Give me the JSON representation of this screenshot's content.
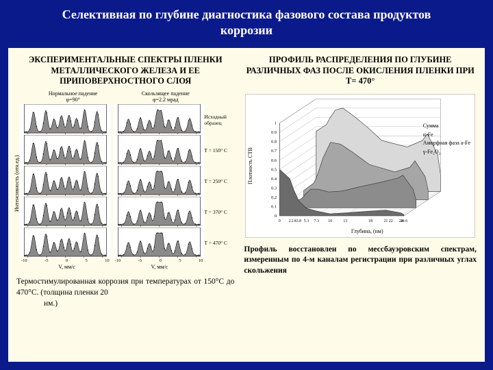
{
  "slide": {
    "title": "Селективная по глубине диагностика фазового состава продуктов коррозии"
  },
  "left": {
    "heading": "ЭКСПЕРИМЕНТАЛЬНЫЕ СПЕКТРЫ ПЛЕНКИ МЕТАЛЛИЧЕСКОГО ЖЕЛЕЗА И ЕЕ ПРИПОВЕРХНОСТНОГО СЛОЯ",
    "col_a_head": "Нормальное падение\nφ=90°",
    "col_b_head": "Скользящее падение\nφ=2.2 мрад",
    "y_label": "Интенсивность (отн.ед.)",
    "x_label": "V, мм/с",
    "row_labels": [
      "Исходный образец",
      "T = 150° C",
      "T = 250° C",
      "T = 370° C",
      "T = 470° C"
    ],
    "x_ticks": [
      -10,
      -5,
      0,
      5,
      10
    ],
    "caption_part1": "Термостимулированная коррозия при температурах от 150°С до 470°С. (толщина пленки 20",
    "caption_part2": "нм.)",
    "spectrum": {
      "fill": "#8a8a8a",
      "stroke": "#111",
      "peaks_a": [
        [
          -8.5,
          0.85
        ],
        [
          -5.2,
          0.92
        ],
        [
          -3.0,
          0.55
        ],
        [
          -1.0,
          0.7
        ],
        [
          1.0,
          0.72
        ],
        [
          3.0,
          0.58
        ],
        [
          5.2,
          0.95
        ],
        [
          8.5,
          0.88
        ]
      ],
      "peaks_b": [
        [
          -8.2,
          0.55
        ],
        [
          -5.0,
          0.6
        ],
        [
          -2.6,
          0.5
        ],
        [
          -0.5,
          0.95
        ],
        [
          0.6,
          0.92
        ],
        [
          2.6,
          0.52
        ],
        [
          5.0,
          0.62
        ],
        [
          8.2,
          0.58
        ]
      ],
      "peak_width": 0.9,
      "fill_variants_b": [
        0.9,
        0.95,
        1.15,
        1.2,
        1.25
      ]
    }
  },
  "right": {
    "heading": "ПРОФИЛЬ РАСПРЕДЕЛЕНИЯ ПО ГЛУБИНЕ РАЗЛИЧНЫХ ФАЗ ПОСЛЕ ОКИСЛЕНИЯ ПЛЕНКИ ПРИ Т= 470°",
    "caption": "Профиль восстановлен по мессбауэровским спектрам, измеренным по 4-м каналам регистрации при различных углах скольжения",
    "y_label": "Плотность СТВ",
    "x_label": "Глубина, (нм)",
    "legend": [
      "Сумма",
      "α-Fe",
      "Аморфная фаза а-Fe",
      "γ-Fe₂O₃"
    ],
    "x_ticks": [
      0,
      2.0,
      2.8,
      3.8,
      5.3,
      7.3,
      10,
      13,
      18,
      21.0,
      22.0,
      24.0,
      24.6
    ],
    "y_ticks": [
      0,
      0.1,
      0.2,
      0.3,
      0.4,
      0.5,
      0.6,
      0.7,
      0.8,
      0.9,
      1
    ],
    "colors": {
      "bg": "#ffffff",
      "grid": "#bfbfbf",
      "sum": "#d9d9d9",
      "alpha": "#a6a6a6",
      "amorph": "#8c8c8c",
      "gamma": "#6b6b6b",
      "floor": "#e8e8e8"
    },
    "series": {
      "depth": [
        0,
        2.0,
        2.8,
        3.8,
        5.3,
        7.3,
        10,
        13,
        18,
        21.0,
        22.0,
        24.0,
        24.6
      ],
      "sum": [
        0.65,
        0.72,
        0.8,
        0.88,
        0.9,
        0.82,
        0.7,
        0.55,
        0.48,
        0.55,
        0.62,
        0.4,
        0.18
      ],
      "alpha": [
        0.1,
        0.18,
        0.28,
        0.45,
        0.62,
        0.6,
        0.5,
        0.38,
        0.3,
        0.35,
        0.42,
        0.25,
        0.1
      ],
      "amorph": [
        0.05,
        0.1,
        0.15,
        0.2,
        0.2,
        0.17,
        0.18,
        0.22,
        0.28,
        0.32,
        0.35,
        0.2,
        0.08
      ],
      "gamma": [
        0.5,
        0.4,
        0.28,
        0.16,
        0.08,
        0.05,
        0.02,
        0.03,
        0.05,
        0.06,
        0.05,
        0.03,
        0.01
      ]
    }
  }
}
